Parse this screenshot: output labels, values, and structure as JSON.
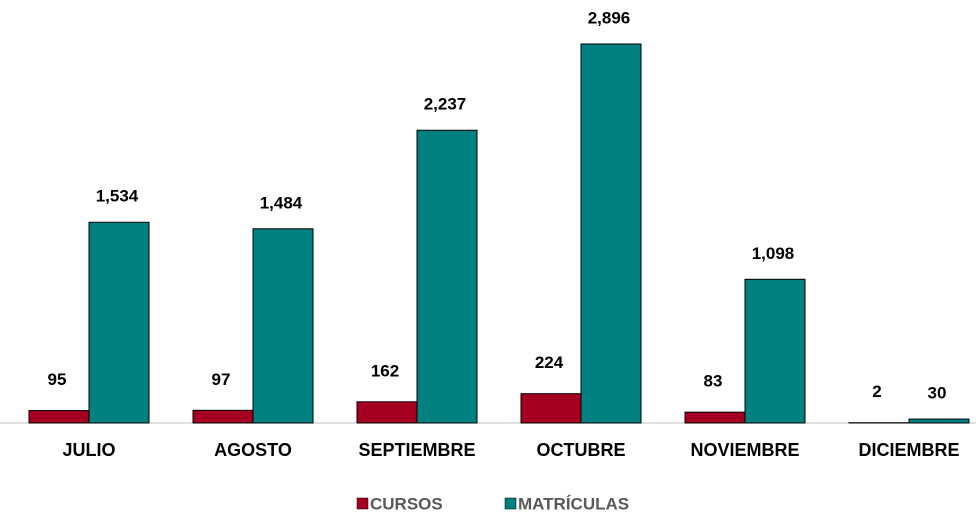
{
  "chart_data": {
    "type": "bar",
    "categories": [
      "JULIO",
      "AGOSTO",
      "SEPTIEMBRE",
      "OCTUBRE",
      "NOVIEMBRE",
      "DICIEMBRE"
    ],
    "series": [
      {
        "name": "CURSOS",
        "color": "#a50021",
        "values": [
          95,
          97,
          162,
          224,
          83,
          2
        ]
      },
      {
        "name": "MATRÍCULAS",
        "color": "#008080",
        "values": [
          1534,
          1484,
          2237,
          2896,
          1098,
          30
        ],
        "value_labels": [
          "1,534",
          "1,484",
          "2,237",
          "2,896",
          "1,098",
          "30"
        ]
      }
    ]
  }
}
